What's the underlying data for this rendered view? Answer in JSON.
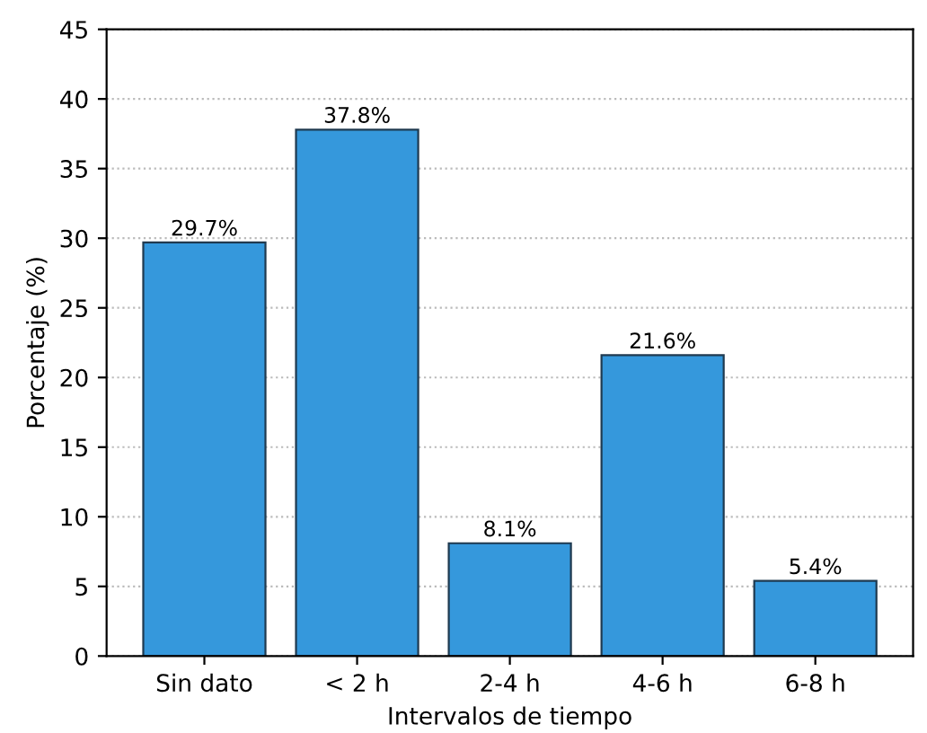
{
  "chart_data": {
    "type": "bar",
    "xlabel": "Intervalos de tiempo",
    "ylabel": "Porcentaje (%)",
    "categories": [
      "Sin dato",
      "< 2 h",
      "2-4 h",
      "4-6 h",
      "6-8 h"
    ],
    "values": [
      29.7,
      37.8,
      8.1,
      21.6,
      5.4
    ],
    "value_labels": [
      "29.7%",
      "37.8%",
      "8.1%",
      "21.6%",
      "5.4%"
    ],
    "color": "#3598dc",
    "ylim": [
      0,
      45
    ],
    "yticks": [
      0,
      5,
      10,
      15,
      20,
      25,
      30,
      35,
      40,
      45
    ],
    "grid": "y"
  }
}
